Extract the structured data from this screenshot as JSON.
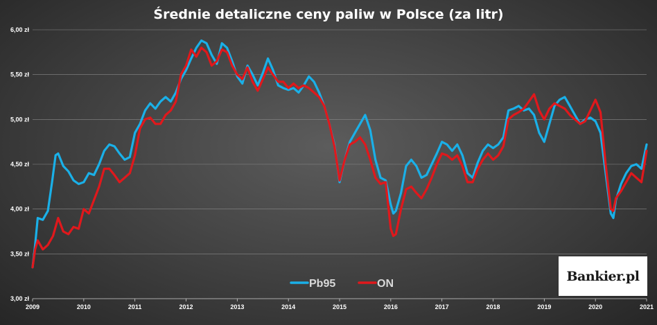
{
  "chart_data": {
    "type": "line",
    "title": "Średnie detaliczne ceny paliw w Polsce (za litr)",
    "xlabel": "",
    "ylabel": "",
    "xlim": [
      2009,
      2021
    ],
    "ylim": [
      3.0,
      6.0
    ],
    "x_ticks": [
      "2009",
      "2010",
      "2011",
      "2012",
      "2013",
      "2014",
      "2015",
      "2016",
      "2017",
      "2018",
      "2019",
      "2020",
      "2021"
    ],
    "y_ticks": [
      "3,00 zł",
      "3,50 zł",
      "4,00 zł",
      "4,50 zł",
      "5,00 zł",
      "5,50 zł",
      "6,00 zł"
    ],
    "grid": true,
    "legend_position": "bottom-center",
    "series": [
      {
        "name": "Pb95",
        "color": "#1ab0e8",
        "points": [
          [
            2009.0,
            3.35
          ],
          [
            2009.05,
            3.6
          ],
          [
            2009.1,
            3.9
          ],
          [
            2009.2,
            3.88
          ],
          [
            2009.3,
            3.98
          ],
          [
            2009.38,
            4.3
          ],
          [
            2009.45,
            4.6
          ],
          [
            2009.5,
            4.62
          ],
          [
            2009.6,
            4.48
          ],
          [
            2009.7,
            4.42
          ],
          [
            2009.8,
            4.32
          ],
          [
            2009.9,
            4.28
          ],
          [
            2010.0,
            4.3
          ],
          [
            2010.1,
            4.4
          ],
          [
            2010.2,
            4.38
          ],
          [
            2010.3,
            4.5
          ],
          [
            2010.4,
            4.65
          ],
          [
            2010.5,
            4.72
          ],
          [
            2010.6,
            4.7
          ],
          [
            2010.7,
            4.62
          ],
          [
            2010.8,
            4.55
          ],
          [
            2010.9,
            4.58
          ],
          [
            2011.0,
            4.85
          ],
          [
            2011.1,
            4.95
          ],
          [
            2011.2,
            5.1
          ],
          [
            2011.3,
            5.18
          ],
          [
            2011.4,
            5.12
          ],
          [
            2011.5,
            5.2
          ],
          [
            2011.6,
            5.25
          ],
          [
            2011.7,
            5.2
          ],
          [
            2011.8,
            5.3
          ],
          [
            2011.9,
            5.45
          ],
          [
            2012.0,
            5.55
          ],
          [
            2012.1,
            5.68
          ],
          [
            2012.2,
            5.8
          ],
          [
            2012.3,
            5.88
          ],
          [
            2012.4,
            5.85
          ],
          [
            2012.5,
            5.72
          ],
          [
            2012.6,
            5.62
          ],
          [
            2012.7,
            5.85
          ],
          [
            2012.8,
            5.8
          ],
          [
            2012.9,
            5.65
          ],
          [
            2013.0,
            5.48
          ],
          [
            2013.1,
            5.4
          ],
          [
            2013.2,
            5.6
          ],
          [
            2013.3,
            5.5
          ],
          [
            2013.4,
            5.38
          ],
          [
            2013.5,
            5.52
          ],
          [
            2013.6,
            5.68
          ],
          [
            2013.7,
            5.55
          ],
          [
            2013.8,
            5.38
          ],
          [
            2013.9,
            5.35
          ],
          [
            2014.0,
            5.33
          ],
          [
            2014.1,
            5.35
          ],
          [
            2014.2,
            5.3
          ],
          [
            2014.3,
            5.38
          ],
          [
            2014.4,
            5.48
          ],
          [
            2014.5,
            5.42
          ],
          [
            2014.6,
            5.3
          ],
          [
            2014.7,
            5.15
          ],
          [
            2014.8,
            4.95
          ],
          [
            2014.9,
            4.72
          ],
          [
            2015.0,
            4.3
          ],
          [
            2015.1,
            4.55
          ],
          [
            2015.2,
            4.75
          ],
          [
            2015.3,
            4.85
          ],
          [
            2015.4,
            4.95
          ],
          [
            2015.5,
            5.05
          ],
          [
            2015.6,
            4.88
          ],
          [
            2015.7,
            4.55
          ],
          [
            2015.8,
            4.35
          ],
          [
            2015.9,
            4.32
          ],
          [
            2016.0,
            4.05
          ],
          [
            2016.05,
            3.95
          ],
          [
            2016.1,
            3.98
          ],
          [
            2016.2,
            4.18
          ],
          [
            2016.3,
            4.48
          ],
          [
            2016.4,
            4.55
          ],
          [
            2016.5,
            4.48
          ],
          [
            2016.6,
            4.35
          ],
          [
            2016.7,
            4.38
          ],
          [
            2016.8,
            4.5
          ],
          [
            2016.9,
            4.62
          ],
          [
            2017.0,
            4.75
          ],
          [
            2017.1,
            4.72
          ],
          [
            2017.2,
            4.65
          ],
          [
            2017.3,
            4.72
          ],
          [
            2017.4,
            4.6
          ],
          [
            2017.5,
            4.4
          ],
          [
            2017.6,
            4.35
          ],
          [
            2017.7,
            4.52
          ],
          [
            2017.8,
            4.65
          ],
          [
            2017.9,
            4.72
          ],
          [
            2018.0,
            4.68
          ],
          [
            2018.1,
            4.72
          ],
          [
            2018.2,
            4.8
          ],
          [
            2018.3,
            5.1
          ],
          [
            2018.4,
            5.12
          ],
          [
            2018.5,
            5.15
          ],
          [
            2018.6,
            5.1
          ],
          [
            2018.7,
            5.12
          ],
          [
            2018.8,
            5.05
          ],
          [
            2018.9,
            4.85
          ],
          [
            2019.0,
            4.75
          ],
          [
            2019.1,
            4.95
          ],
          [
            2019.2,
            5.15
          ],
          [
            2019.3,
            5.22
          ],
          [
            2019.4,
            5.25
          ],
          [
            2019.5,
            5.15
          ],
          [
            2019.6,
            5.05
          ],
          [
            2019.7,
            4.95
          ],
          [
            2019.8,
            5.0
          ],
          [
            2019.9,
            5.02
          ],
          [
            2020.0,
            4.98
          ],
          [
            2020.1,
            4.85
          ],
          [
            2020.2,
            4.4
          ],
          [
            2020.3,
            3.95
          ],
          [
            2020.35,
            3.9
          ],
          [
            2020.4,
            4.1
          ],
          [
            2020.5,
            4.28
          ],
          [
            2020.6,
            4.4
          ],
          [
            2020.7,
            4.48
          ],
          [
            2020.8,
            4.5
          ],
          [
            2020.9,
            4.45
          ],
          [
            2021.0,
            4.72
          ]
        ]
      },
      {
        "name": "ON",
        "color": "#e0181c",
        "points": [
          [
            2009.0,
            3.35
          ],
          [
            2009.05,
            3.55
          ],
          [
            2009.1,
            3.65
          ],
          [
            2009.2,
            3.55
          ],
          [
            2009.3,
            3.6
          ],
          [
            2009.4,
            3.7
          ],
          [
            2009.5,
            3.9
          ],
          [
            2009.6,
            3.75
          ],
          [
            2009.7,
            3.72
          ],
          [
            2009.8,
            3.8
          ],
          [
            2009.9,
            3.78
          ],
          [
            2010.0,
            4.0
          ],
          [
            2010.1,
            3.95
          ],
          [
            2010.2,
            4.1
          ],
          [
            2010.3,
            4.25
          ],
          [
            2010.4,
            4.45
          ],
          [
            2010.5,
            4.45
          ],
          [
            2010.6,
            4.38
          ],
          [
            2010.7,
            4.3
          ],
          [
            2010.8,
            4.35
          ],
          [
            2010.9,
            4.4
          ],
          [
            2011.0,
            4.6
          ],
          [
            2011.1,
            4.9
          ],
          [
            2011.2,
            5.0
          ],
          [
            2011.3,
            5.02
          ],
          [
            2011.4,
            4.95
          ],
          [
            2011.5,
            4.95
          ],
          [
            2011.6,
            5.05
          ],
          [
            2011.7,
            5.1
          ],
          [
            2011.8,
            5.2
          ],
          [
            2011.9,
            5.5
          ],
          [
            2012.0,
            5.6
          ],
          [
            2012.1,
            5.78
          ],
          [
            2012.2,
            5.7
          ],
          [
            2012.3,
            5.8
          ],
          [
            2012.4,
            5.75
          ],
          [
            2012.5,
            5.6
          ],
          [
            2012.6,
            5.65
          ],
          [
            2012.7,
            5.78
          ],
          [
            2012.8,
            5.75
          ],
          [
            2012.9,
            5.6
          ],
          [
            2013.0,
            5.5
          ],
          [
            2013.1,
            5.45
          ],
          [
            2013.2,
            5.58
          ],
          [
            2013.3,
            5.42
          ],
          [
            2013.4,
            5.32
          ],
          [
            2013.5,
            5.45
          ],
          [
            2013.6,
            5.58
          ],
          [
            2013.7,
            5.5
          ],
          [
            2013.8,
            5.42
          ],
          [
            2013.9,
            5.42
          ],
          [
            2014.0,
            5.35
          ],
          [
            2014.1,
            5.4
          ],
          [
            2014.2,
            5.35
          ],
          [
            2014.3,
            5.38
          ],
          [
            2014.4,
            5.35
          ],
          [
            2014.5,
            5.3
          ],
          [
            2014.6,
            5.25
          ],
          [
            2014.7,
            5.15
          ],
          [
            2014.8,
            4.95
          ],
          [
            2014.9,
            4.7
          ],
          [
            2015.0,
            4.32
          ],
          [
            2015.1,
            4.55
          ],
          [
            2015.2,
            4.72
          ],
          [
            2015.3,
            4.75
          ],
          [
            2015.4,
            4.8
          ],
          [
            2015.5,
            4.72
          ],
          [
            2015.6,
            4.55
          ],
          [
            2015.7,
            4.35
          ],
          [
            2015.8,
            4.28
          ],
          [
            2015.9,
            4.3
          ],
          [
            2016.0,
            3.78
          ],
          [
            2016.05,
            3.7
          ],
          [
            2016.1,
            3.72
          ],
          [
            2016.2,
            4.0
          ],
          [
            2016.3,
            4.22
          ],
          [
            2016.4,
            4.25
          ],
          [
            2016.5,
            4.18
          ],
          [
            2016.6,
            4.12
          ],
          [
            2016.7,
            4.22
          ],
          [
            2016.8,
            4.35
          ],
          [
            2016.9,
            4.5
          ],
          [
            2017.0,
            4.62
          ],
          [
            2017.1,
            4.6
          ],
          [
            2017.2,
            4.55
          ],
          [
            2017.3,
            4.6
          ],
          [
            2017.4,
            4.48
          ],
          [
            2017.5,
            4.3
          ],
          [
            2017.6,
            4.3
          ],
          [
            2017.7,
            4.45
          ],
          [
            2017.8,
            4.55
          ],
          [
            2017.9,
            4.62
          ],
          [
            2018.0,
            4.55
          ],
          [
            2018.1,
            4.6
          ],
          [
            2018.2,
            4.7
          ],
          [
            2018.3,
            5.0
          ],
          [
            2018.4,
            5.05
          ],
          [
            2018.5,
            5.08
          ],
          [
            2018.6,
            5.12
          ],
          [
            2018.7,
            5.2
          ],
          [
            2018.8,
            5.28
          ],
          [
            2018.9,
            5.1
          ],
          [
            2019.0,
            5.0
          ],
          [
            2019.1,
            5.12
          ],
          [
            2019.2,
            5.18
          ],
          [
            2019.3,
            5.15
          ],
          [
            2019.4,
            5.12
          ],
          [
            2019.5,
            5.05
          ],
          [
            2019.6,
            5.0
          ],
          [
            2019.7,
            4.95
          ],
          [
            2019.8,
            4.98
          ],
          [
            2019.9,
            5.1
          ],
          [
            2020.0,
            5.22
          ],
          [
            2020.1,
            5.08
          ],
          [
            2020.2,
            4.5
          ],
          [
            2020.3,
            4.0
          ],
          [
            2020.35,
            3.98
          ],
          [
            2020.4,
            4.12
          ],
          [
            2020.5,
            4.2
          ],
          [
            2020.6,
            4.3
          ],
          [
            2020.7,
            4.4
          ],
          [
            2020.8,
            4.35
          ],
          [
            2020.9,
            4.3
          ],
          [
            2021.0,
            4.65
          ]
        ]
      }
    ]
  },
  "logo": {
    "text": "Bankier.pl"
  }
}
